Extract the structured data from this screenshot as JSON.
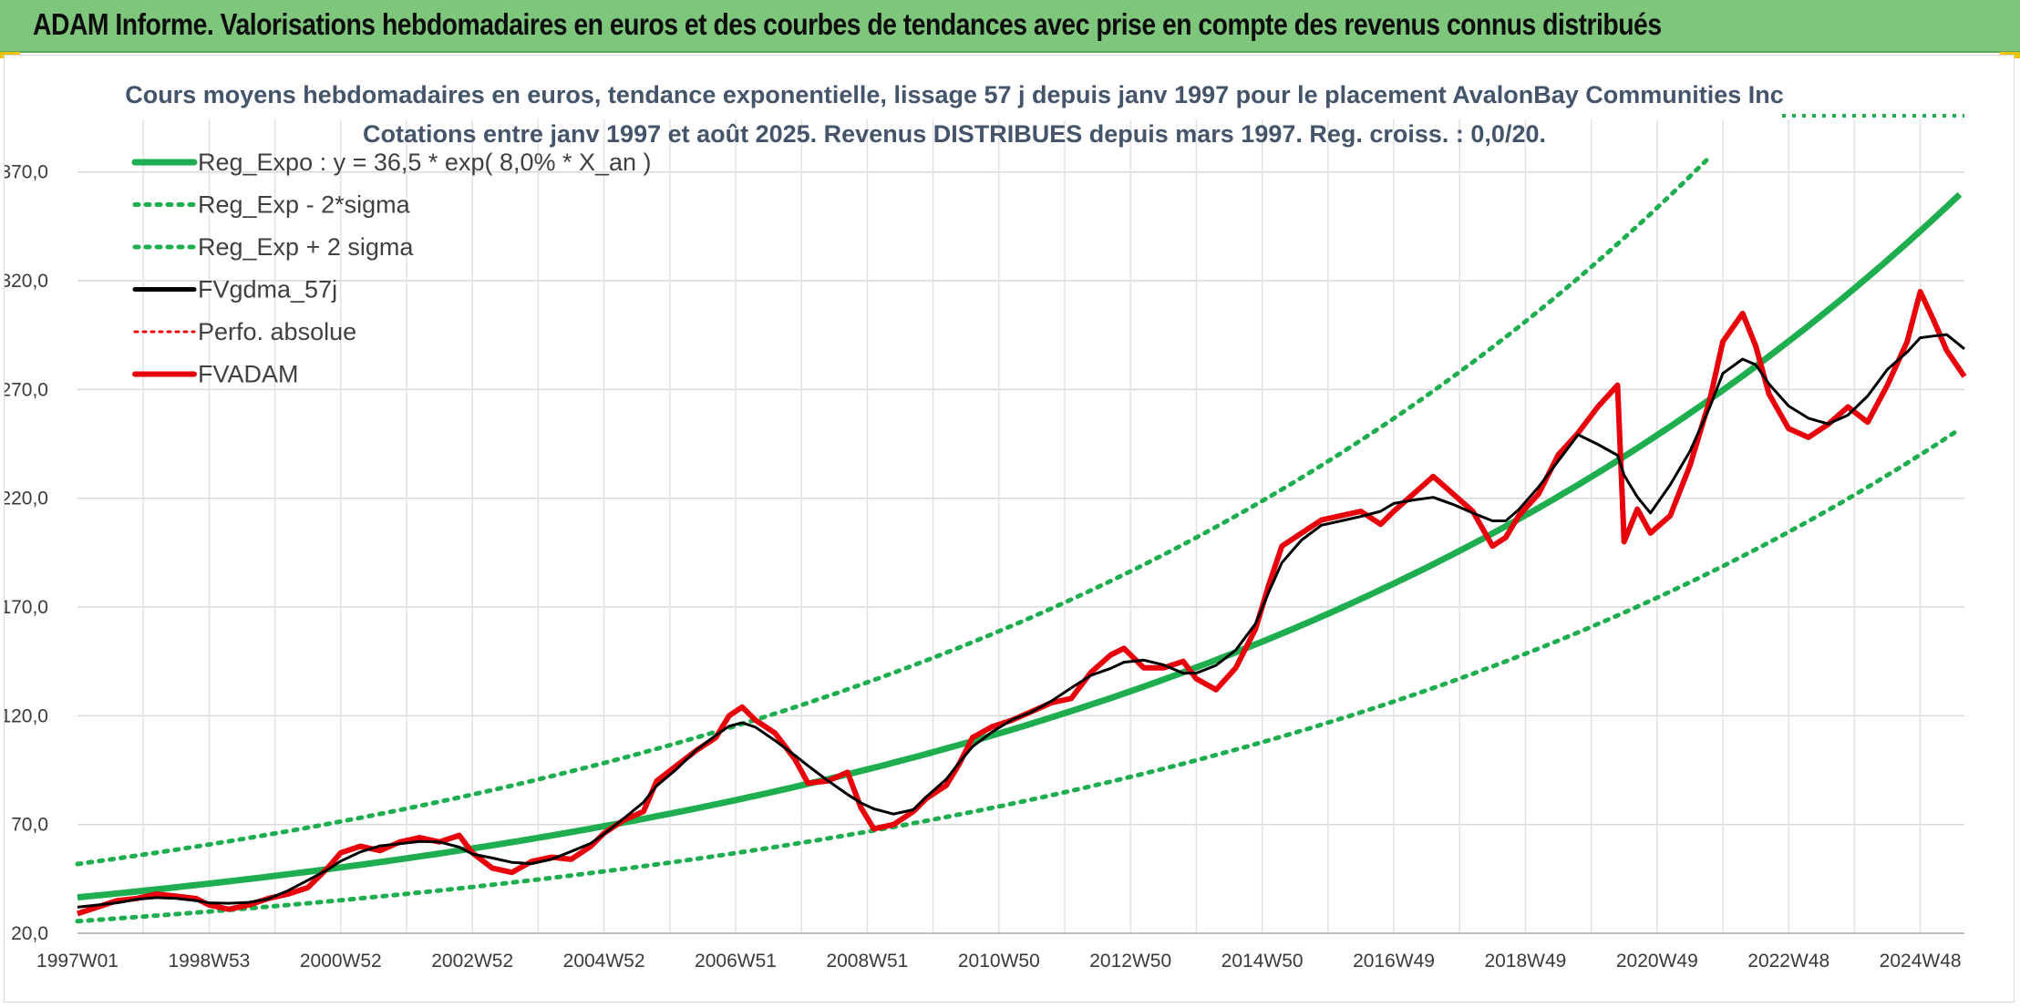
{
  "banner": {
    "title": "ADAM Informe. Valorisations hebdomadaires en euros et des courbes de tendances avec prise en compte des revenus connus distribués"
  },
  "colors": {
    "banner": "#7fc67d",
    "trend": "#1fae4f",
    "price": "#e8000b",
    "smoothed": "#000000",
    "title_text": "#44546a"
  },
  "chart_data": {
    "type": "line",
    "title": "Cours moyens hebdomadaires en euros, tendance exponentielle, lissage 57 j depuis janv 1997 pour le placement AvalonBay Communities Inc",
    "subtitle": "Cotations entre janv 1997 et août 2025. Revenus DISTRIBUES depuis mars 1997. Reg. croiss. : 0,0/20.",
    "xlabel": "",
    "ylabel": "",
    "ylim": [
      20,
      390
    ],
    "yticks": [
      "20,0",
      "70,0",
      "120,0",
      "170,0",
      "220,0",
      "270,0",
      "320,0",
      "370,0"
    ],
    "xticks": [
      {
        "label": "1997W01",
        "year": 1997.0
      },
      {
        "label": "1998W53",
        "year": 1999.0
      },
      {
        "label": "2000W52",
        "year": 2001.0
      },
      {
        "label": "2002W52",
        "year": 2003.0
      },
      {
        "label": "2004W52",
        "year": 2005.0
      },
      {
        "label": "2006W51",
        "year": 2007.0
      },
      {
        "label": "2008W51",
        "year": 2009.0
      },
      {
        "label": "2010W50",
        "year": 2011.0
      },
      {
        "label": "2012W50",
        "year": 2013.0
      },
      {
        "label": "2014W50",
        "year": 2015.0
      },
      {
        "label": "2016W49",
        "year": 2017.0
      },
      {
        "label": "2018W49",
        "year": 2019.0
      },
      {
        "label": "2020W49",
        "year": 2021.0
      },
      {
        "label": "2022W48",
        "year": 2023.0
      },
      {
        "label": "2024W48",
        "year": 2025.0
      }
    ],
    "xlim": [
      1997.0,
      2025.67
    ],
    "grid": true,
    "legend_position": "top-left",
    "legend": [
      {
        "label": "Reg_Expo : y = 36,5 * exp( 8,0% *  X_an )",
        "series": "reg"
      },
      {
        "label": "Reg_Exp - 2*sigma",
        "series": "low"
      },
      {
        "label": "Reg_Exp + 2 sigma",
        "series": "high"
      },
      {
        "label": "FVgdma_57j",
        "series": "fvgdma"
      },
      {
        "label": "Perfo. absolue",
        "series": "perfo"
      },
      {
        "label": "FVADAM",
        "series": "fvadam"
      }
    ],
    "regression": {
      "a": 36.5,
      "rate": 0.08,
      "low_factor": 0.7,
      "high_factor": 1.42
    },
    "series": [
      {
        "name": "FVADAM",
        "points": [
          [
            1997.0,
            29
          ],
          [
            1997.3,
            32
          ],
          [
            1997.6,
            35
          ],
          [
            1997.9,
            36
          ],
          [
            1998.2,
            38
          ],
          [
            1998.5,
            37
          ],
          [
            1998.8,
            36
          ],
          [
            1999.0,
            33
          ],
          [
            1999.3,
            31
          ],
          [
            1999.6,
            33
          ],
          [
            1999.9,
            36
          ],
          [
            2000.2,
            38
          ],
          [
            2000.5,
            41
          ],
          [
            2000.8,
            50
          ],
          [
            2001.0,
            57
          ],
          [
            2001.3,
            60
          ],
          [
            2001.6,
            58
          ],
          [
            2001.9,
            62
          ],
          [
            2002.2,
            64
          ],
          [
            2002.5,
            62
          ],
          [
            2002.8,
            65
          ],
          [
            2003.0,
            57
          ],
          [
            2003.3,
            50
          ],
          [
            2003.6,
            48
          ],
          [
            2003.9,
            53
          ],
          [
            2004.2,
            55
          ],
          [
            2004.5,
            54
          ],
          [
            2004.8,
            60
          ],
          [
            2005.0,
            66
          ],
          [
            2005.3,
            72
          ],
          [
            2005.6,
            76
          ],
          [
            2005.8,
            90
          ],
          [
            2006.1,
            97
          ],
          [
            2006.4,
            104
          ],
          [
            2006.7,
            110
          ],
          [
            2006.9,
            120
          ],
          [
            2007.1,
            124
          ],
          [
            2007.3,
            118
          ],
          [
            2007.6,
            112
          ],
          [
            2007.9,
            100
          ],
          [
            2008.1,
            89
          ],
          [
            2008.4,
            90
          ],
          [
            2008.7,
            94
          ],
          [
            2008.9,
            78
          ],
          [
            2009.1,
            68
          ],
          [
            2009.4,
            70
          ],
          [
            2009.7,
            76
          ],
          [
            2009.9,
            82
          ],
          [
            2010.2,
            88
          ],
          [
            2010.4,
            98
          ],
          [
            2010.6,
            110
          ],
          [
            2010.9,
            115
          ],
          [
            2011.2,
            118
          ],
          [
            2011.5,
            122
          ],
          [
            2011.8,
            126
          ],
          [
            2012.1,
            128
          ],
          [
            2012.4,
            140
          ],
          [
            2012.7,
            148
          ],
          [
            2012.9,
            151
          ],
          [
            2013.2,
            142
          ],
          [
            2013.5,
            142
          ],
          [
            2013.8,
            145
          ],
          [
            2014.0,
            137
          ],
          [
            2014.3,
            132
          ],
          [
            2014.6,
            142
          ],
          [
            2014.9,
            160
          ],
          [
            2015.1,
            180
          ],
          [
            2015.3,
            198
          ],
          [
            2015.6,
            204
          ],
          [
            2015.9,
            210
          ],
          [
            2016.2,
            212
          ],
          [
            2016.5,
            214
          ],
          [
            2016.8,
            208
          ],
          [
            2017.0,
            214
          ],
          [
            2017.3,
            222
          ],
          [
            2017.6,
            230
          ],
          [
            2017.9,
            222
          ],
          [
            2018.2,
            214
          ],
          [
            2018.5,
            198
          ],
          [
            2018.7,
            202
          ],
          [
            2018.9,
            212
          ],
          [
            2019.2,
            222
          ],
          [
            2019.5,
            240
          ],
          [
            2019.8,
            250
          ],
          [
            2020.1,
            262
          ],
          [
            2020.4,
            272
          ],
          [
            2020.5,
            200
          ],
          [
            2020.7,
            215
          ],
          [
            2020.9,
            204
          ],
          [
            2021.2,
            212
          ],
          [
            2021.5,
            235
          ],
          [
            2021.8,
            265
          ],
          [
            2022.0,
            292
          ],
          [
            2022.3,
            305
          ],
          [
            2022.5,
            290
          ],
          [
            2022.7,
            268
          ],
          [
            2023.0,
            252
          ],
          [
            2023.3,
            248
          ],
          [
            2023.6,
            254
          ],
          [
            2023.9,
            262
          ],
          [
            2024.2,
            255
          ],
          [
            2024.5,
            272
          ],
          [
            2024.8,
            292
          ],
          [
            2025.0,
            315
          ],
          [
            2025.2,
            302
          ],
          [
            2025.4,
            288
          ],
          [
            2025.67,
            276
          ]
        ]
      }
    ]
  }
}
